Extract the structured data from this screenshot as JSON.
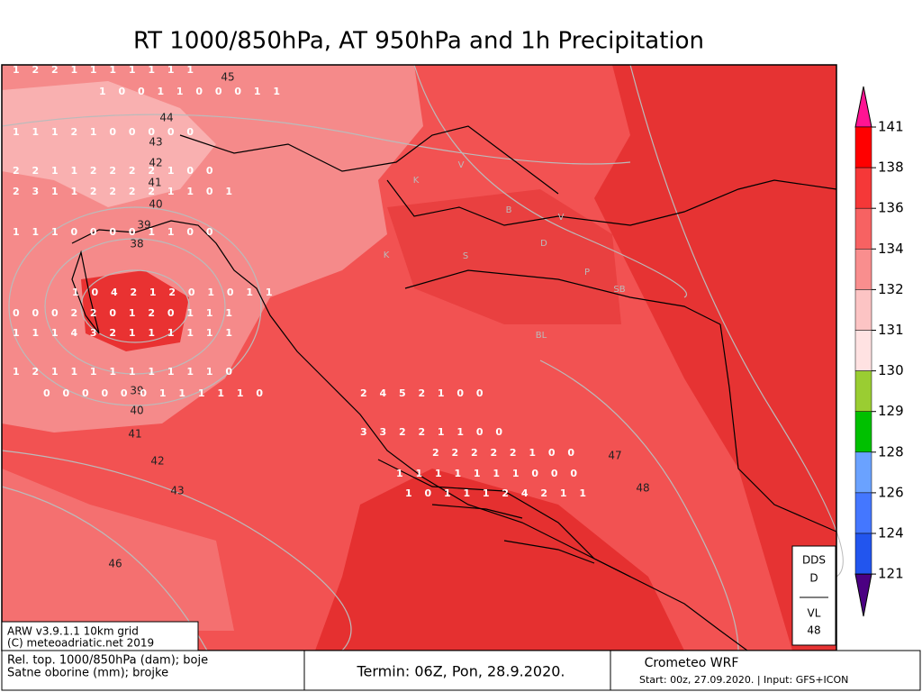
{
  "title": "RT 1000/850hPa, AT 950hPa and 1h Precipitation",
  "colorbar": {
    "labels": [
      "141",
      "138",
      "136",
      "134",
      "132",
      "131",
      "130",
      "129",
      "128",
      "126",
      "124",
      "121"
    ]
  },
  "contour_labels": [
    "45",
    "44",
    "43",
    "42",
    "41",
    "40",
    "39",
    "38",
    "39",
    "40",
    "41",
    "42",
    "43",
    "46",
    "47",
    "48"
  ],
  "region_labels": [
    "V",
    "K",
    "B",
    "V",
    "S",
    "D",
    "P",
    "SB",
    "BL",
    "K"
  ],
  "precip_rows": [
    "1 2 2 1 1 1 1 1 1 1",
    "1 0 0 1 1 0 0 0 1 1",
    "1 1 1 2 1 0 0 0 0 0",
    "2 2 1 1 2 2 2 2 1 0 0",
    "2 3 1 1 2 2 2 2 1 1 0 1",
    "1 1 1 0 0 0 0 1 1 0 0",
    "1 0 4 2 1 2 0 1 0 1 1",
    "0 0 0 2 2 0 1 2 0 1 1 1",
    "1 1 1 4 3 2 1 1 1 1 1 1",
    "1 2 1 1 1 1 1 1 1 1 1 0",
    "0 0 0 0 0 0 1 1 1 1 1 0",
    "2 4 5 2 1 0 0",
    "3 3 2 2 1 1 0 0",
    "2 2 2 2 2 1 0 0",
    "1 1 1 1 1 1 1 0 0 0",
    "1 0 1 1 1 2 4 2 1 1"
  ],
  "dds_box": {
    "line1": "DDS",
    "line2": "D",
    "line3": "VL",
    "line4": "48"
  },
  "footer": {
    "model": "ARW v3.9.1.1 10km grid",
    "copyright": "(C) meteoadriatic.net 2019",
    "legend_line1": "Rel. top. 1000/850hPa (dam); boje",
    "legend_line2": "Satne oborine (mm); brojke",
    "termin": "Termin: 06Z, Pon, 28.9.2020.",
    "brand": "Crometeo WRF",
    "start": "Start: 00z, 27.09.2020. | Input: GFS+ICON"
  }
}
